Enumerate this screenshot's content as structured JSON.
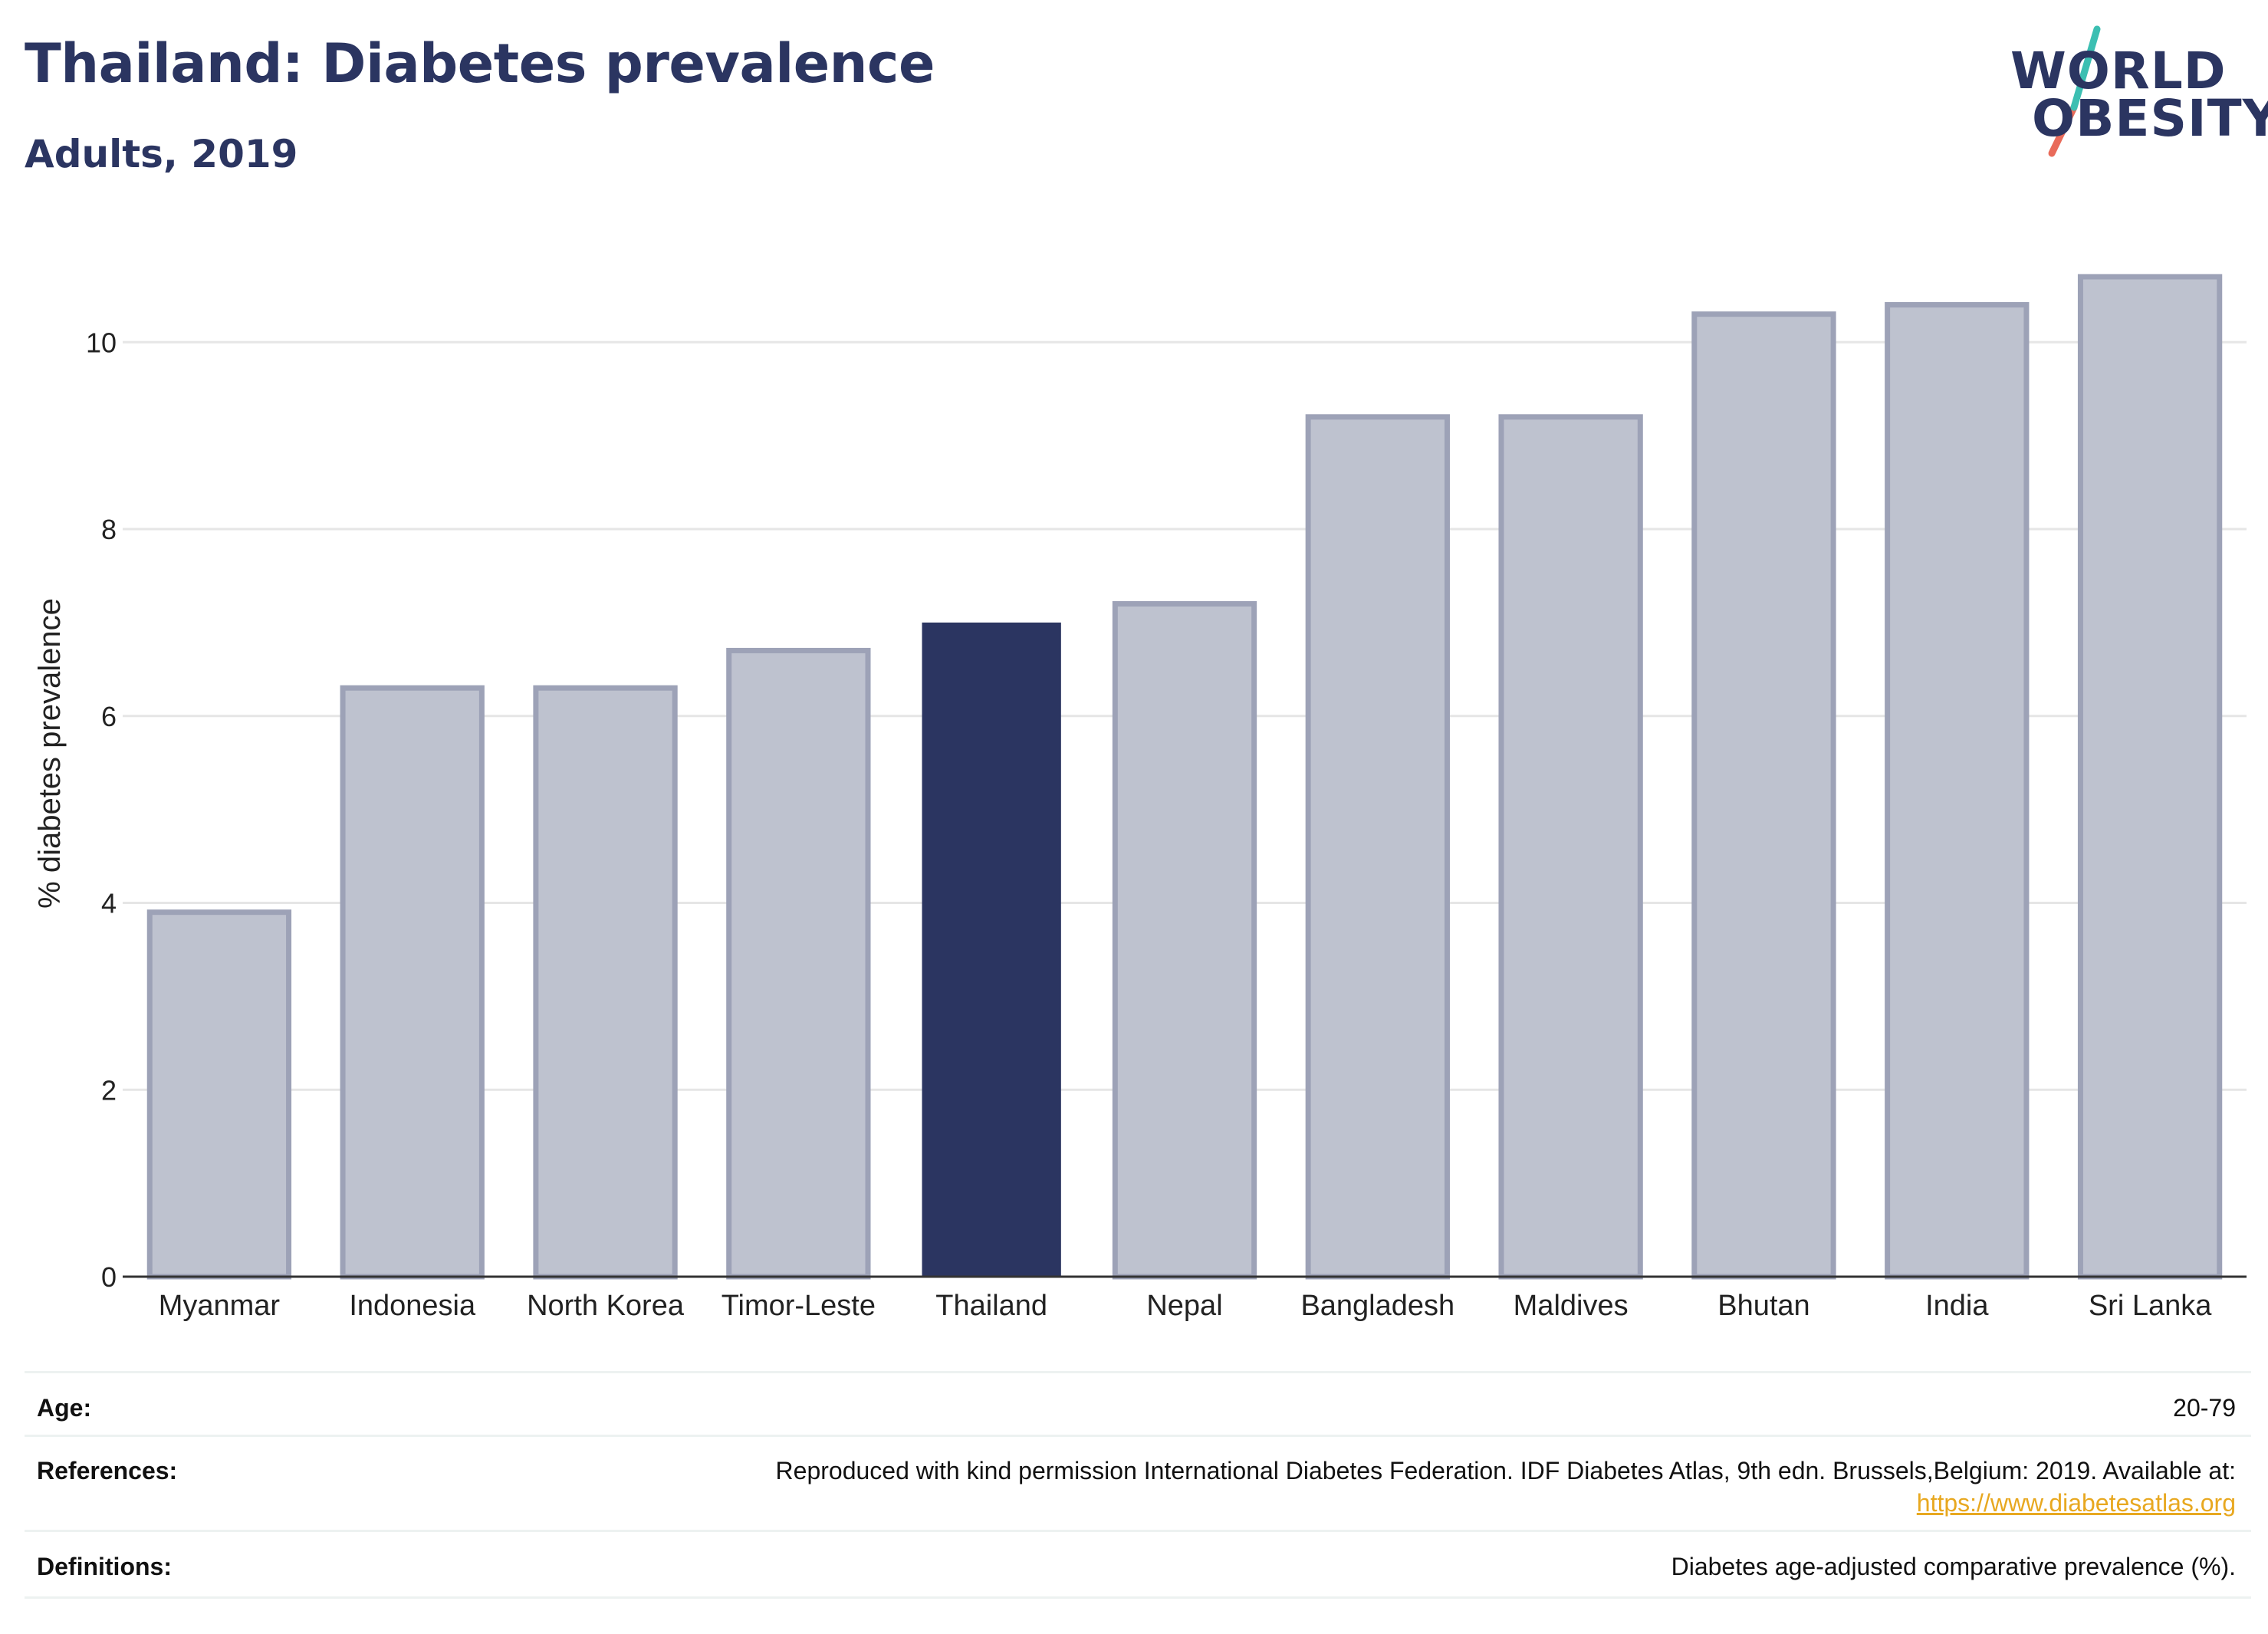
{
  "header": {
    "title": "Thailand: Diabetes prevalence",
    "subtitle": "Adults, 2019"
  },
  "logo": {
    "line1": "WORLD",
    "line2": "OBESITY",
    "accent_colors": [
      "#3cbfb2",
      "#e96b5a"
    ]
  },
  "chart_data": {
    "type": "bar",
    "categories": [
      "Myanmar",
      "Indonesia",
      "North Korea",
      "Timor-Leste",
      "Thailand",
      "Nepal",
      "Bangladesh",
      "Maldives",
      "Bhutan",
      "India",
      "Sri Lanka"
    ],
    "values": [
      3.9,
      6.3,
      6.3,
      6.7,
      7.0,
      7.2,
      9.2,
      9.2,
      10.3,
      10.4,
      10.7
    ],
    "highlight": "Thailand",
    "xlabel": "",
    "ylabel": "% diabetes prevalence",
    "ylim": [
      0,
      11.2
    ],
    "yticks": [
      0,
      2,
      4,
      6,
      8,
      10
    ],
    "grid": true,
    "colors": {
      "bar": "#bec2cf",
      "bar_border": "#9da2b7",
      "highlight": "#2b3561",
      "axis": "#333333",
      "grid": "#e6e6e6"
    }
  },
  "meta": {
    "age_label": "Age:",
    "age_value": "20-79",
    "references_label": "References:",
    "references_text": "Reproduced with kind permission International Diabetes Federation. IDF Diabetes Atlas, 9th edn. Brussels,Belgium: 2019. Available at:",
    "references_link": "https://www.diabetesatlas.org",
    "definitions_label": "Definitions:",
    "definitions_value": "Diabetes age-adjusted comparative prevalence (%)."
  }
}
